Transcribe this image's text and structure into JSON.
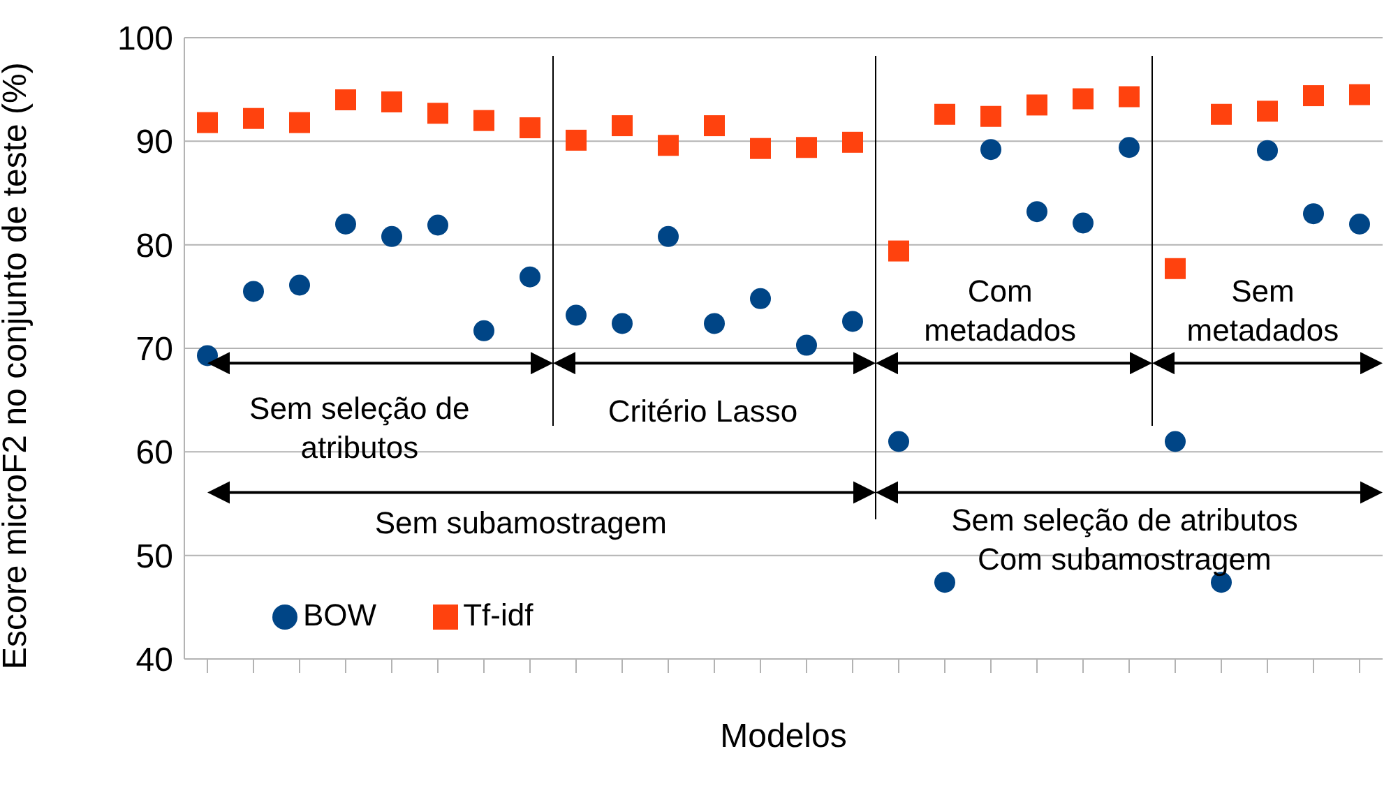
{
  "chart_data": {
    "type": "scatter",
    "xlabel": "Modelos",
    "ylabel": "Escore microF2 no conjunto de teste (%)",
    "categories": [
      null,
      null,
      null,
      null,
      null,
      null,
      null,
      null,
      null,
      null,
      null,
      null,
      null,
      null,
      null,
      null,
      null,
      null,
      null,
      null,
      null,
      null,
      null,
      null,
      null,
      null
    ],
    "series": [
      {
        "name": "BOW",
        "color": "#004586",
        "marker": "circle",
        "values": [
          69.3,
          75.5,
          76.1,
          82.0,
          80.8,
          81.9,
          71.7,
          76.9,
          73.2,
          72.4,
          80.8,
          72.4,
          74.8,
          70.3,
          72.6,
          61.0,
          47.4,
          89.2,
          83.2,
          82.1,
          89.4,
          61.0,
          47.4,
          89.1,
          83.0,
          82.0
        ]
      },
      {
        "name": "Tf-idf",
        "color": "#ff420e",
        "marker": "square",
        "values": [
          91.8,
          92.2,
          91.8,
          94.0,
          93.8,
          92.7,
          92.0,
          91.3,
          90.1,
          91.5,
          89.6,
          91.5,
          89.3,
          89.4,
          89.9,
          79.4,
          92.6,
          92.4,
          93.5,
          94.1,
          94.3,
          77.7,
          92.6,
          92.9,
          94.4,
          94.5
        ]
      }
    ],
    "ylim": [
      40,
      100
    ],
    "yticks": [
      40,
      50,
      60,
      70,
      80,
      90,
      100
    ],
    "grid": "y",
    "legend": "bottom left",
    "tick_labels": "y",
    "annotations": [
      "Sem seleção de\natributos",
      "Critério Lasso",
      "Com\nmetadados",
      "Sem\nmetadados",
      "Sem subamostragem",
      "Sem seleção de atributos\nCom subamostragem"
    ]
  }
}
